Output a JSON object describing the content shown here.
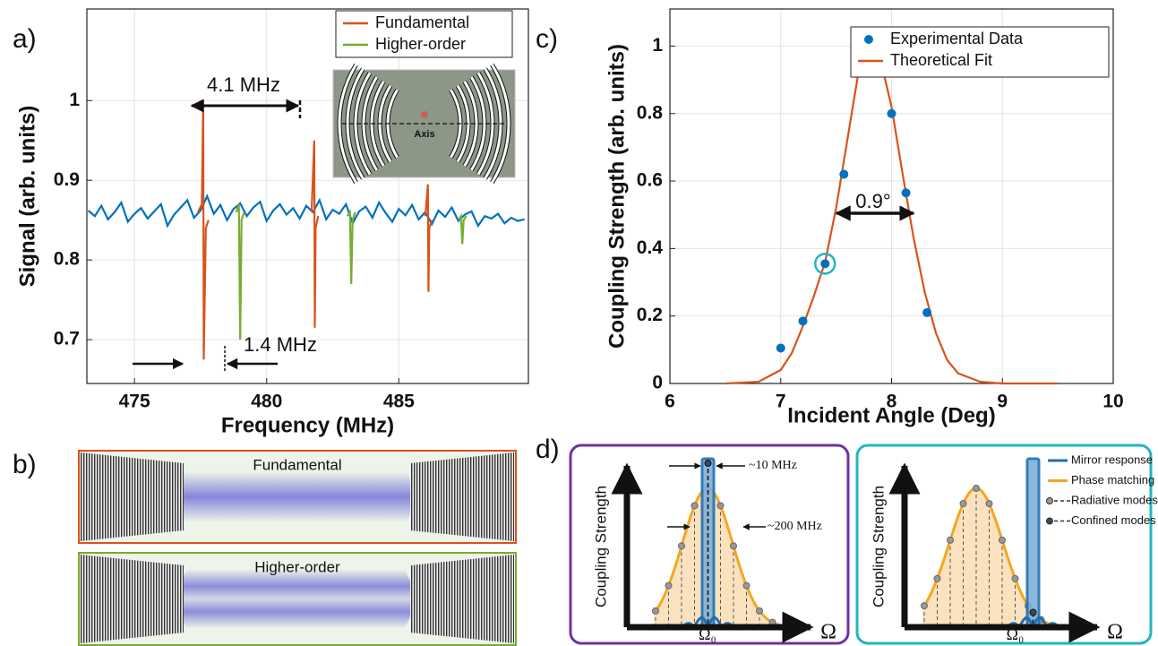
{
  "panel_labels": [
    "a)",
    "b)",
    "c)",
    "d)"
  ],
  "chart_data": [
    {
      "type": "line",
      "xlabel": "Frequency (MHz)",
      "ylabel": "Signal (arb. units)",
      "xlim": [
        473.2,
        489.9
      ],
      "ylim": [
        0.645,
        1.115
      ],
      "xticks": [
        475,
        480,
        485
      ],
      "yticks": [
        0.7,
        0.8,
        0.9,
        1
      ],
      "grid": true,
      "legend": "upper right",
      "annotations": [
        "4.1 MHz",
        "1.4 MHz"
      ],
      "inset_label": "Axis",
      "series": [
        {
          "color": "#0072bd",
          "x": [
            473.25,
            473.5,
            473.75,
            474,
            474.25,
            474.5,
            474.75,
            475,
            475.25,
            475.5,
            475.75,
            476,
            476.25,
            476.5,
            476.75,
            477,
            477.25,
            477.5,
            477.75,
            478,
            478.25,
            478.5,
            478.75,
            479,
            479.25,
            479.5,
            479.75,
            480,
            480.25,
            480.5,
            480.75,
            481,
            481.25,
            481.5,
            481.75,
            482,
            482.25,
            482.5,
            482.75,
            483,
            483.25,
            483.5,
            483.75,
            484,
            484.25,
            484.5,
            484.75,
            485,
            485.25,
            485.5,
            485.75,
            486,
            486.25,
            486.5,
            486.75,
            487,
            487.25,
            487.5,
            487.75,
            488,
            488.25,
            488.5,
            488.75,
            489,
            489.25,
            489.5,
            489.75
          ],
          "values": [
            0.862,
            0.855,
            0.868,
            0.851,
            0.86,
            0.872,
            0.848,
            0.858,
            0.865,
            0.852,
            0.861,
            0.87,
            0.843,
            0.857,
            0.866,
            0.875,
            0.853,
            0.862,
            0.88,
            0.858,
            0.869,
            0.85,
            0.864,
            0.871,
            0.855,
            0.866,
            0.873,
            0.849,
            0.862,
            0.87,
            0.857,
            0.865,
            0.852,
            0.868,
            0.86,
            0.875,
            0.851,
            0.863,
            0.858,
            0.87,
            0.846,
            0.861,
            0.867,
            0.853,
            0.872,
            0.859,
            0.848,
            0.864,
            0.856,
            0.869,
            0.851,
            0.86,
            0.845,
            0.862,
            0.854,
            0.866,
            0.849,
            0.857,
            0.861,
            0.843,
            0.855,
            0.852,
            0.858,
            0.846,
            0.853,
            0.849,
            0.851
          ]
        },
        {
          "name": "Fundamental",
          "color": "#d95319",
          "x": [
            477.4,
            477.55,
            477.6,
            477.62,
            477.7,
            477.8,
            null,
            481.7,
            481.8,
            481.82,
            481.85,
            481.95,
            null,
            486.0,
            486.1,
            486.12,
            486.15,
            486.25
          ],
          "values": [
            0.86,
            0.87,
            1.0,
            0.675,
            0.84,
            0.85,
            null,
            0.86,
            0.95,
            0.715,
            0.84,
            0.855,
            null,
            0.855,
            0.895,
            0.76,
            0.84,
            0.85
          ]
        },
        {
          "name": "Higher-order",
          "color": "#77ac30",
          "x": [
            478.85,
            478.95,
            479.0,
            479.05,
            479.15,
            null,
            483.05,
            483.15,
            483.2,
            483.25,
            483.35,
            null,
            487.25,
            487.35,
            487.4,
            487.45,
            487.55
          ],
          "values": [
            0.86,
            0.87,
            0.7,
            0.85,
            0.86,
            null,
            0.855,
            0.86,
            0.77,
            0.85,
            0.86,
            null,
            0.85,
            0.855,
            0.82,
            0.85,
            0.855
          ]
        }
      ]
    },
    {
      "type": "scatter",
      "xlabel": "Incident Angle (Deg)",
      "ylabel": "Coupling Strength (arb. units)",
      "xlim": [
        6,
        10
      ],
      "ylim": [
        0,
        1.11
      ],
      "xticks": [
        6,
        7,
        8,
        9,
        10
      ],
      "yticks": [
        0,
        0.2,
        0.4,
        0.6,
        0.8,
        1
      ],
      "grid": true,
      "legend": "upper right",
      "annotations": [
        "0.9°"
      ],
      "series": [
        {
          "name": "Experimental Data",
          "color": "#0072bd",
          "x": [
            7.0,
            7.2,
            7.4,
            7.57,
            7.67,
            7.75,
            8.0,
            8.13,
            8.32
          ],
          "values": [
            0.105,
            0.185,
            0.355,
            0.62,
            0.93,
            1.0,
            0.8,
            0.565,
            0.21
          ]
        },
        {
          "name": "Theoretical Fit",
          "color": "#d95319",
          "type": "line",
          "x": [
            6.5,
            6.8,
            7.0,
            7.1,
            7.2,
            7.3,
            7.4,
            7.5,
            7.6,
            7.7,
            7.8,
            7.9,
            8.0,
            8.1,
            8.2,
            8.3,
            8.4,
            8.5,
            8.6,
            8.8,
            9.0,
            9.5
          ],
          "values": [
            0,
            0.005,
            0.04,
            0.09,
            0.17,
            0.26,
            0.36,
            0.52,
            0.72,
            0.92,
            1.0,
            0.96,
            0.82,
            0.62,
            0.43,
            0.27,
            0.15,
            0.07,
            0.03,
            0.005,
            0,
            0
          ]
        }
      ]
    }
  ],
  "panel_b": {
    "labels": [
      "Fundamental",
      "Higher-order"
    ]
  },
  "panel_d": {
    "axis_labels": [
      "Coupling Strength",
      "Coupling Strength"
    ],
    "x_symbols": [
      "Ω",
      "Ω"
    ],
    "center_labels": [
      "Ω₀",
      "Ω₀"
    ],
    "annotations": [
      "~10 MHz",
      "~200 MHz"
    ],
    "legend": [
      "Mirror response",
      "Phase matching",
      "Radiative modes",
      "Confined modes"
    ]
  }
}
